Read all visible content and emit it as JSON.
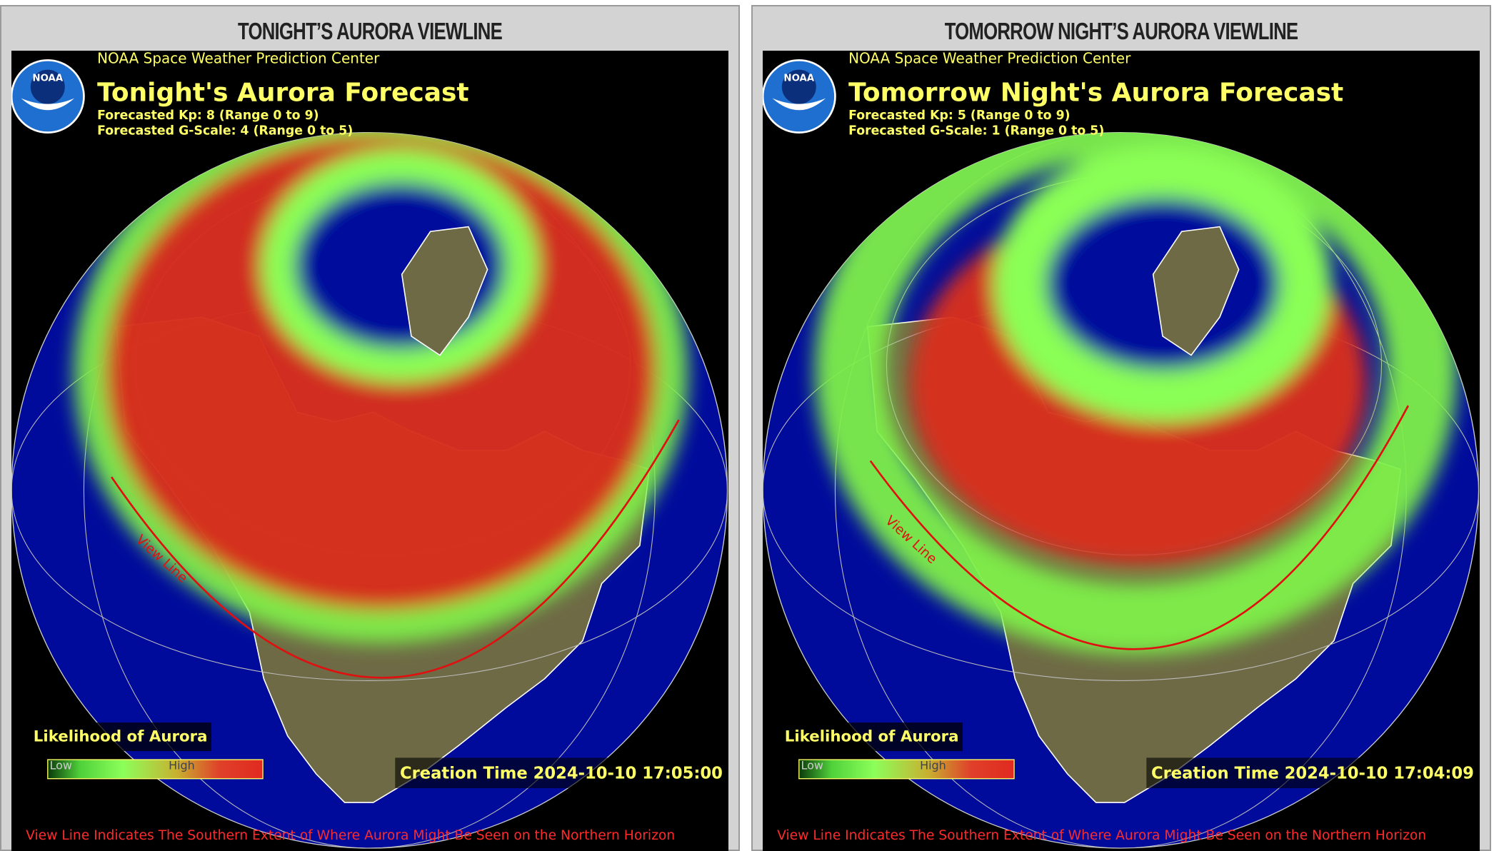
{
  "panels": [
    {
      "heading": "TONIGHT’S AURORA VIEWLINE",
      "map": {
        "logo": "NOAA",
        "agency": "NOAA Space Weather Prediction Center",
        "title": "Tonight's Aurora Forecast",
        "kp": "Forecasted Kp: 8 (Range 0 to 9)",
        "g_scale": "Forecasted G-Scale: 4 (Range 0 to 5)",
        "view_line_label": "View Line",
        "legend": {
          "title": "Likelihood of Aurora",
          "low": "Low",
          "high": "High"
        },
        "creation_time": "Creation Time 2024-10-10 17:05:00",
        "footnote": "View Line Indicates The Southern Extent of Where Aurora Might Be Seen on the Northern Horizon"
      }
    },
    {
      "heading": "TOMORROW NIGHT’S AURORA VIEWLINE",
      "map": {
        "logo": "NOAA",
        "agency": "NOAA Space Weather Prediction Center",
        "title": "Tomorrow Night's Aurora Forecast",
        "kp": "Forecasted Kp: 5 (Range 0 to 9)",
        "g_scale": "Forecasted G-Scale: 1 (Range 0 to 5)",
        "view_line_label": "View Line",
        "legend": {
          "title": "Likelihood of Aurora",
          "low": "Low",
          "high": "High"
        },
        "creation_time": "Creation Time 2024-10-10 17:04:09",
        "footnote": "View Line Indicates The Southern Extent of Where Aurora Might Be Seen on the Northern Horizon"
      }
    }
  ]
}
